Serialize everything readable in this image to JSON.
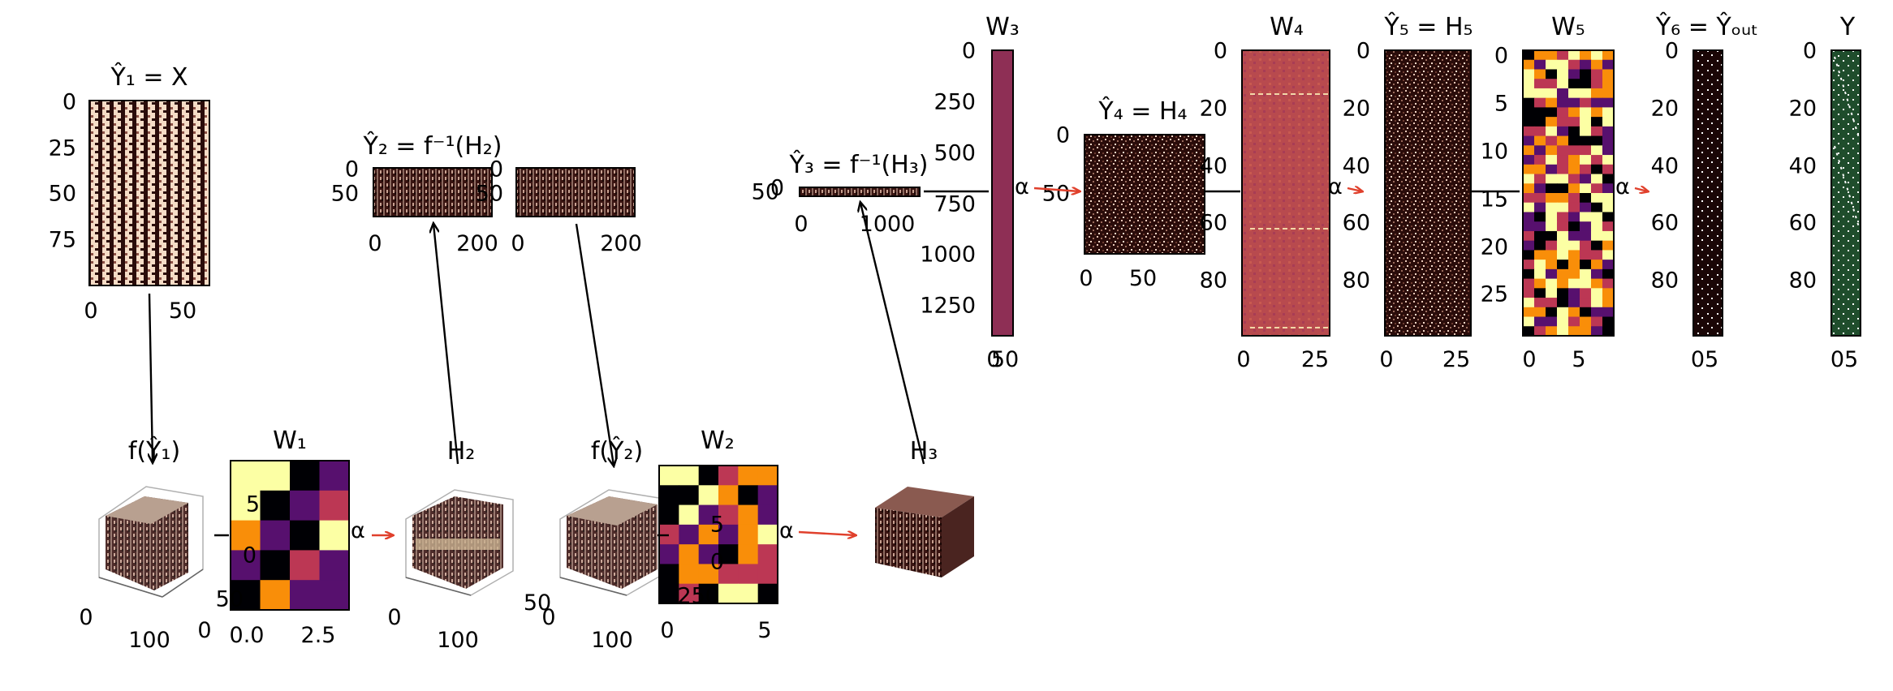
{
  "titles": {
    "y1": "Ŷ₁ = X",
    "y2": "Ŷ₂ = f⁻¹(H₂)",
    "y3": "Ŷ₃ = f⁻¹(H₃)",
    "w3": "W₃",
    "y4": "Ŷ₄ = H₄",
    "w4": "W₄",
    "y5": "Ŷ₅ = H₅",
    "w5": "W₅",
    "y6": "Ŷ₆ = Ŷₒᵤₜ",
    "y": "Y",
    "fy1": "f(Ŷ₁)",
    "w1": "W₁",
    "h2": "H₂",
    "fy2": "f(Ŷ₂)",
    "w2": "W₂",
    "h3": "H₃"
  },
  "alpha": "α",
  "ticks": {
    "y1_y": [
      "0",
      "25",
      "50",
      "75"
    ],
    "y1_x": [
      "0",
      "50"
    ],
    "y2_y": [
      "0",
      "50"
    ],
    "y2_x": [
      "0",
      "200"
    ],
    "y2b_y": [
      "0",
      "50"
    ],
    "y2b_x": [
      "0",
      "200"
    ],
    "y3_y": [
      "0",
      "50"
    ],
    "y3_x": [
      "0",
      "1000"
    ],
    "w3_y": [
      "0",
      "250",
      "500",
      "750",
      "1000",
      "1250"
    ],
    "w3_x": [
      "0",
      "50"
    ],
    "y4_y": [
      "0",
      "50"
    ],
    "y4_x": [
      "0",
      "50"
    ],
    "w4_y": [
      "0",
      "20",
      "40",
      "60",
      "80"
    ],
    "w4_x": [
      "0",
      "25"
    ],
    "y5_y": [
      "0",
      "20",
      "40",
      "60",
      "80"
    ],
    "y5_x": [
      "0",
      "25"
    ],
    "w5_y": [
      "0",
      "5",
      "10",
      "15",
      "20",
      "25"
    ],
    "w5_x": [
      "0",
      "5"
    ],
    "y6_y": [
      "0",
      "20",
      "40",
      "60",
      "80"
    ],
    "y6_x": [
      "05"
    ],
    "y_y": [
      "0",
      "20",
      "40",
      "60",
      "80"
    ],
    "y_x": [
      "05"
    ],
    "fy1_x": [
      "0",
      "100"
    ],
    "w1_y": [
      "5",
      "0",
      "50"
    ],
    "w1_x": [
      "0.0",
      "2.5"
    ],
    "w1_extra": [
      "0"
    ],
    "h2_x": [
      "0",
      "100"
    ],
    "h2_side": [
      "50"
    ],
    "fy2_x": [
      "0",
      "100"
    ],
    "w2_y": [
      "5",
      "0",
      "250"
    ],
    "w2_x": [
      "0",
      "5"
    ]
  },
  "colors": {
    "stripe_light": "#f5dcc6",
    "stripe_dark": "#2a0c0a",
    "w3_color": "#8e2f55",
    "y_green": "#1f4d2c",
    "arrow_red": "#e0402c",
    "inferno_dark": "#000004",
    "inferno_purple": "#57106e",
    "inferno_red": "#bc3754",
    "inferno_orange": "#f98e09",
    "inferno_yellow": "#fcffa4"
  }
}
